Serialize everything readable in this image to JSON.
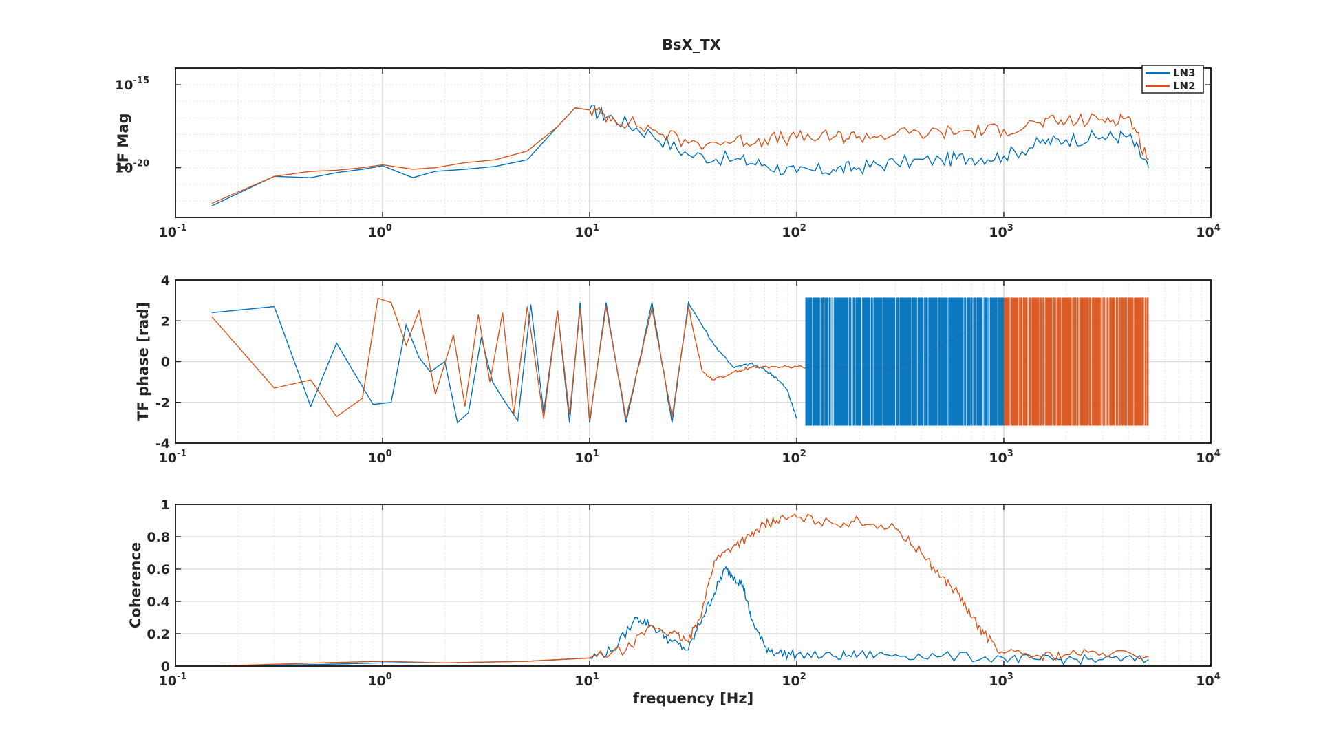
{
  "figure": {
    "title": "BsX_TX",
    "legend": {
      "placement": "top-right",
      "entries": [
        {
          "name": "LN3",
          "color": "#0072BD"
        },
        {
          "name": "LN2",
          "color": "#D95319"
        }
      ]
    }
  },
  "chart_data": [
    {
      "type": "line",
      "title": "BsX_TX",
      "xlabel": "",
      "ylabel": "TF Mag",
      "xscale": "log",
      "yscale": "log",
      "xlim": [
        0.1,
        10000
      ],
      "ylim": [
        1e-23,
        1e-14
      ],
      "xticks": [
        {
          "base": "10",
          "exp": "-1"
        },
        {
          "base": "10",
          "exp": "0"
        },
        {
          "base": "10",
          "exp": "1"
        },
        {
          "base": "10",
          "exp": "2"
        },
        {
          "base": "10",
          "exp": "3"
        },
        {
          "base": "10",
          "exp": "4"
        }
      ],
      "yticks": [
        {
          "base": "10",
          "exp": "-15"
        },
        {
          "base": "10",
          "exp": "-20"
        }
      ],
      "grid": true,
      "legend": "top-right",
      "series": [
        {
          "name": "LN3",
          "color": "#0072BD",
          "x": [
            0.15,
            0.3,
            0.45,
            0.6,
            0.8,
            1.0,
            1.4,
            1.8,
            2.5,
            3.5,
            5,
            7,
            8.5,
            10,
            13,
            20,
            30,
            50,
            70,
            100,
            150,
            200,
            300,
            500,
            700,
            1000,
            1500,
            2000,
            3000,
            4000,
            5000
          ],
          "y": [
            5e-23,
            3e-21,
            2.5e-21,
            5e-21,
            8e-21,
            1.3e-20,
            2.5e-21,
            6e-21,
            8e-21,
            1.2e-20,
            3e-20,
            3e-18,
            4e-17,
            3e-17,
            1e-17,
            1e-18,
            6e-20,
            3e-20,
            1.5e-20,
            5e-21,
            8e-21,
            1e-20,
            2e-20,
            3e-20,
            4e-20,
            5e-20,
            3e-19,
            5e-19,
            7e-19,
            8e-19,
            1e-20
          ]
        },
        {
          "name": "LN2",
          "color": "#D95319",
          "x": [
            0.15,
            0.3,
            0.45,
            0.6,
            0.8,
            1.0,
            1.4,
            1.8,
            2.5,
            3.5,
            5,
            7,
            8.5,
            10,
            13,
            20,
            30,
            50,
            70,
            100,
            150,
            200,
            300,
            500,
            700,
            1000,
            1500,
            2000,
            3000,
            4000,
            5000
          ],
          "y": [
            7e-23,
            3e-21,
            6e-21,
            7e-21,
            1e-20,
            1.5e-20,
            8e-21,
            1e-20,
            2e-20,
            3e-20,
            1e-19,
            3e-18,
            4e-17,
            3e-17,
            1e-17,
            2e-18,
            3e-19,
            4e-19,
            5e-19,
            6e-19,
            7e-19,
            8e-19,
            1e-18,
            1.3e-18,
            1.6e-18,
            2e-18,
            5e-18,
            6e-18,
            8e-18,
            1.2e-17,
            3e-20
          ]
        }
      ]
    },
    {
      "type": "line",
      "title": "",
      "xlabel": "",
      "ylabel": "TF phase [rad]",
      "xscale": "log",
      "xlim": [
        0.1,
        10000
      ],
      "ylim": [
        -4,
        4
      ],
      "xticks": [
        {
          "base": "10",
          "exp": "-1"
        },
        {
          "base": "10",
          "exp": "0"
        },
        {
          "base": "10",
          "exp": "1"
        },
        {
          "base": "10",
          "exp": "2"
        },
        {
          "base": "10",
          "exp": "3"
        },
        {
          "base": "10",
          "exp": "4"
        }
      ],
      "yticks": [
        "-4",
        "-2",
        "0",
        "2",
        "4"
      ],
      "grid": true,
      "series": [
        {
          "name": "LN3",
          "color": "#0072BD",
          "x": [
            0.15,
            0.3,
            0.45,
            0.6,
            0.9,
            1.1,
            1.3,
            1.5,
            1.7,
            2.0,
            2.3,
            2.6,
            3.0,
            3.4,
            3.8,
            4.5,
            5.2,
            6,
            7,
            8,
            9,
            10,
            12,
            15,
            20,
            25,
            30,
            40,
            50,
            60,
            70,
            80,
            90,
            100
          ],
          "y": [
            2.4,
            2.7,
            -2.2,
            0.9,
            -2.1,
            -2.0,
            1.8,
            0.2,
            -0.5,
            0,
            -3.0,
            -2.5,
            1.2,
            -1.0,
            -1.8,
            -2.9,
            2.8,
            -2.5,
            2.5,
            -3.0,
            2.9,
            -3.0,
            2.9,
            -3.0,
            2.9,
            -3.0,
            2.9,
            0.8,
            -0.3,
            -0.1,
            -0.4,
            -0.8,
            -1.4,
            -2.8
          ]
        },
        {
          "name": "LN2",
          "color": "#D95319",
          "x": [
            0.15,
            0.3,
            0.45,
            0.6,
            0.8,
            0.95,
            1.1,
            1.3,
            1.5,
            1.8,
            2.2,
            2.5,
            2.9,
            3.3,
            3.8,
            4.3,
            5,
            6,
            7,
            8,
            9,
            10,
            12,
            15,
            20,
            25,
            30,
            35,
            40,
            50,
            60,
            80,
            100,
            150,
            200,
            300,
            400,
            500,
            700,
            1000
          ],
          "y": [
            2.2,
            -1.3,
            -0.9,
            -2.7,
            -1.8,
            3.1,
            2.9,
            0.8,
            2.5,
            -1.6,
            1.3,
            -2.2,
            2.3,
            -1.0,
            2.4,
            -2.6,
            2.7,
            -2.8,
            2.5,
            -2.6,
            2.6,
            -2.9,
            2.7,
            -2.8,
            2.6,
            -2.7,
            2.7,
            -0.5,
            -0.9,
            -0.5,
            -0.3,
            -0.25,
            -0.25,
            -0.25,
            -0.3,
            -0.3,
            0.1,
            0.8,
            1.6,
            2.9
          ]
        }
      ],
      "annotations": [
        {
          "series": "LN3",
          "x_range": [
            110,
            1000
          ],
          "y_range": [
            -3.14,
            3.14
          ],
          "pattern": "phase wrapping band"
        },
        {
          "series": "LN2",
          "x_range": [
            1000,
            5000
          ],
          "y_range": [
            -3.14,
            3.14
          ],
          "pattern": "phase wrapping band"
        }
      ]
    },
    {
      "type": "line",
      "title": "",
      "xlabel": "frequency [Hz]",
      "ylabel": "Coherence",
      "xscale": "log",
      "xlim": [
        0.1,
        10000
      ],
      "ylim": [
        0,
        1
      ],
      "xticks": [
        {
          "base": "10",
          "exp": "-1"
        },
        {
          "base": "10",
          "exp": "0"
        },
        {
          "base": "10",
          "exp": "1"
        },
        {
          "base": "10",
          "exp": "2"
        },
        {
          "base": "10",
          "exp": "3"
        },
        {
          "base": "10",
          "exp": "4"
        }
      ],
      "yticks": [
        "0",
        "0.2",
        "0.4",
        "0.6",
        "0.8",
        "1"
      ],
      "grid": true,
      "series": [
        {
          "name": "LN3",
          "color": "#0072BD",
          "x": [
            0.15,
            0.5,
            1,
            2,
            5,
            10,
            13,
            17,
            20,
            25,
            30,
            35,
            40,
            45,
            50,
            55,
            60,
            70,
            80,
            100,
            150,
            200,
            300,
            500,
            1000,
            1500,
            2000,
            3000,
            5000
          ],
          "y": [
            0.0,
            0.01,
            0.02,
            0.02,
            0.03,
            0.05,
            0.1,
            0.3,
            0.25,
            0.15,
            0.1,
            0.3,
            0.45,
            0.6,
            0.55,
            0.5,
            0.3,
            0.12,
            0.08,
            0.07,
            0.06,
            0.07,
            0.07,
            0.06,
            0.05,
            0.04,
            0.04,
            0.04,
            0.04
          ]
        },
        {
          "name": "LN2",
          "color": "#D95319",
          "x": [
            0.15,
            0.5,
            1,
            2,
            5,
            10,
            15,
            20,
            25,
            30,
            35,
            40,
            50,
            60,
            70,
            80,
            100,
            150,
            200,
            300,
            400,
            500,
            600,
            700,
            800,
            1000,
            1500,
            2000,
            3000,
            5000
          ],
          "y": [
            0.0,
            0.02,
            0.03,
            0.02,
            0.03,
            0.05,
            0.1,
            0.25,
            0.2,
            0.15,
            0.35,
            0.65,
            0.75,
            0.8,
            0.88,
            0.9,
            0.92,
            0.88,
            0.9,
            0.85,
            0.7,
            0.55,
            0.45,
            0.3,
            0.2,
            0.08,
            0.06,
            0.07,
            0.08,
            0.06
          ]
        }
      ]
    }
  ]
}
